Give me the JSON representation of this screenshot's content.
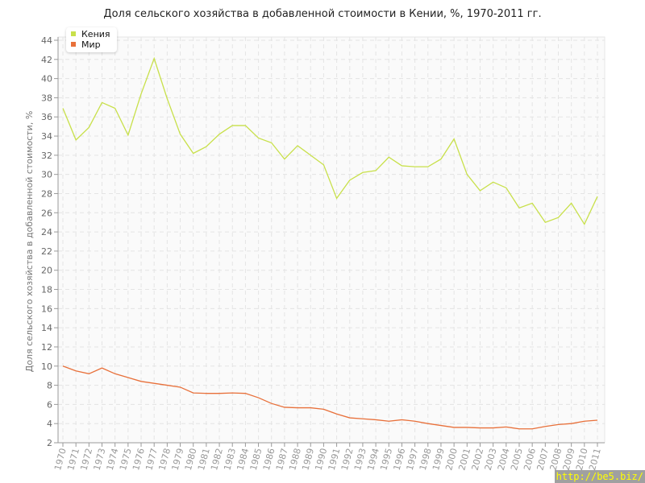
{
  "chart_data": {
    "type": "line",
    "title": "Доля сельского хозяйства в добавленной стоимости в Кении, %, 1970-2011 гг.",
    "ylabel": "Доля сельского хозяйства в добавленной стоимости, %",
    "xlabel": "",
    "ylim": [
      2,
      44
    ],
    "yticks": [
      2,
      4,
      6,
      8,
      10,
      12,
      14,
      16,
      18,
      20,
      22,
      24,
      26,
      28,
      30,
      32,
      34,
      36,
      38,
      40,
      42,
      44
    ],
    "grid": true,
    "legend_position": "top-left",
    "x": [
      1970,
      1971,
      1972,
      1973,
      1974,
      1975,
      1976,
      1977,
      1978,
      1979,
      1980,
      1981,
      1982,
      1983,
      1984,
      1985,
      1986,
      1987,
      1988,
      1989,
      1990,
      1991,
      1992,
      1993,
      1994,
      1995,
      1996,
      1997,
      1998,
      1999,
      2000,
      2001,
      2002,
      2003,
      2004,
      2005,
      2006,
      2007,
      2008,
      2009,
      2010,
      2011
    ],
    "series": [
      {
        "name": "Кения",
        "color": "#c8e04a",
        "values": [
          36.9,
          33.6,
          34.9,
          37.5,
          36.9,
          34.1,
          38.4,
          42.1,
          37.9,
          34.2,
          32.2,
          32.9,
          34.2,
          35.1,
          35.1,
          33.8,
          33.3,
          31.6,
          33.0,
          32.0,
          31.0,
          27.5,
          29.4,
          30.2,
          30.4,
          31.8,
          30.9,
          30.8,
          30.8,
          31.6,
          33.7,
          30.0,
          28.3,
          29.2,
          28.6,
          26.5,
          27.0,
          25.0,
          25.5,
          27.0,
          24.8,
          27.7
        ]
      },
      {
        "name": "Мир",
        "color": "#e8703a",
        "values": [
          10.0,
          9.5,
          9.2,
          9.8,
          9.2,
          8.8,
          8.4,
          8.2,
          8.0,
          7.8,
          7.2,
          7.15,
          7.15,
          7.2,
          7.15,
          6.7,
          6.1,
          5.7,
          5.65,
          5.65,
          5.5,
          5.0,
          4.6,
          4.5,
          4.4,
          4.25,
          4.4,
          4.25,
          4.0,
          3.8,
          3.6,
          3.6,
          3.55,
          3.55,
          3.65,
          3.45,
          3.45,
          3.7,
          3.9,
          4.0,
          4.25,
          4.35
        ]
      }
    ]
  },
  "watermark": "http://be5.biz/"
}
